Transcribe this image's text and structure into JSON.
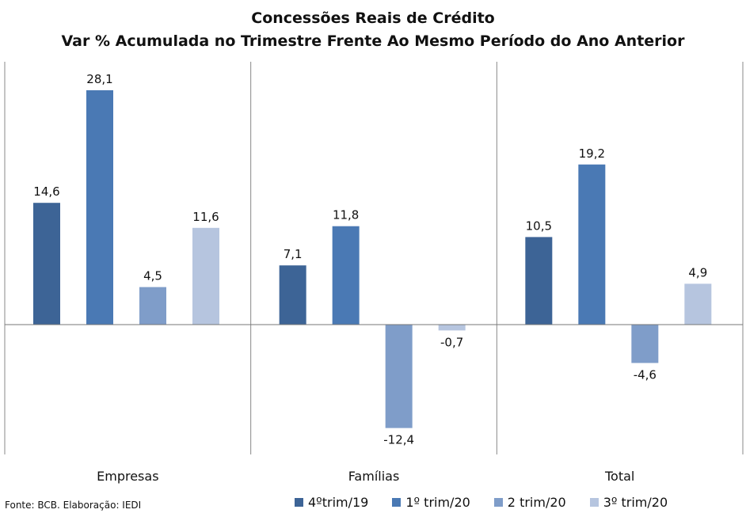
{
  "chart_data": {
    "type": "bar",
    "title": "Concessões Reais de Crédito",
    "subtitle": "Var % Acumulada no Trimestre Frente Ao Mesmo Período do Ano Anterior",
    "categories": [
      "Empresas",
      "Famílias",
      "Total"
    ],
    "series": [
      {
        "name": "4ºtrim/19",
        "color": "#3d6496",
        "values": [
          14.6,
          7.1,
          10.5
        ]
      },
      {
        "name": "1º trim/20",
        "color": "#4a79b4",
        "values": [
          28.1,
          11.8,
          19.2
        ]
      },
      {
        "name": "2 trim/20",
        "color": "#7f9dc9",
        "values": [
          4.5,
          -12.4,
          -4.6
        ]
      },
      {
        "name": "3º trim/20",
        "color": "#b6c5df",
        "values": [
          11.6,
          -0.7,
          4.9
        ]
      }
    ],
    "value_labels": [
      [
        "14,6",
        "7,1",
        "10,5"
      ],
      [
        "28,1",
        "11,8",
        "19,2"
      ],
      [
        "4,5",
        "-12,4",
        "-4,6"
      ],
      [
        "11,6",
        "-0,7",
        "4,9"
      ]
    ],
    "ylim": [
      -15,
      30
    ],
    "legend_position": "bottom-right",
    "grid": false
  },
  "source_note": "Fonte:  BCB. Elaboração: IEDI"
}
